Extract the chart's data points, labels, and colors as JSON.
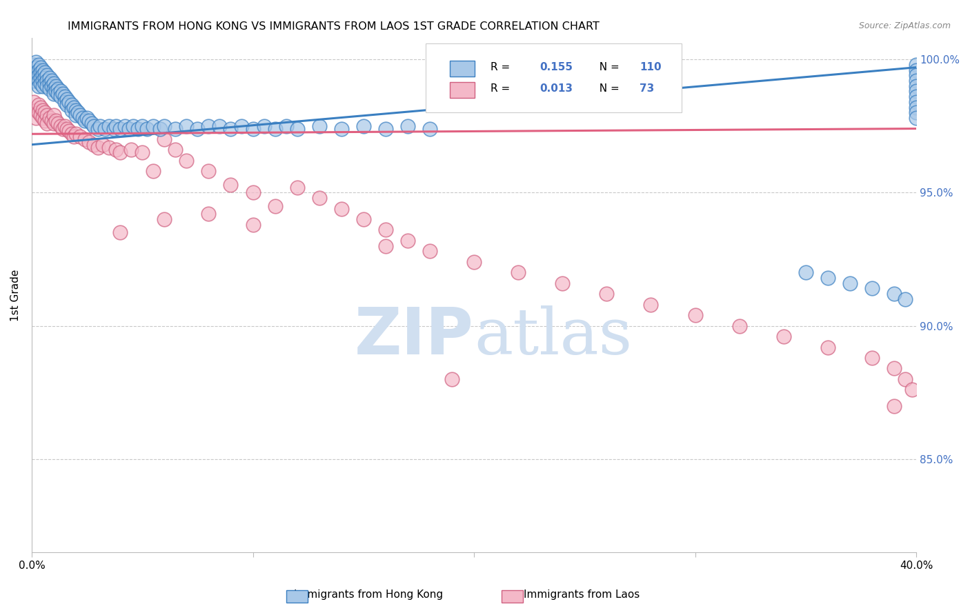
{
  "title": "IMMIGRANTS FROM HONG KONG VS IMMIGRANTS FROM LAOS 1ST GRADE CORRELATION CHART",
  "source": "Source: ZipAtlas.com",
  "ylabel": "1st Grade",
  "x_min": 0.0,
  "x_max": 0.4,
  "y_min": 0.815,
  "y_max": 1.008,
  "y_ticks": [
    0.85,
    0.9,
    0.95,
    1.0
  ],
  "y_tick_labels": [
    "85.0%",
    "90.0%",
    "95.0%",
    "100.0%"
  ],
  "x_ticks": [
    0.0,
    0.1,
    0.2,
    0.3,
    0.4
  ],
  "x_tick_labels": [
    "0.0%",
    "",
    "",
    "",
    "40.0%"
  ],
  "legend_label1": "Immigrants from Hong Kong",
  "legend_label2": "Immigrants from Laos",
  "R1": 0.155,
  "N1": 110,
  "R2": 0.013,
  "N2": 73,
  "color_hk_fill": "#a8c8e8",
  "color_hk_edge": "#3a7fc1",
  "color_laos_fill": "#f4b8c8",
  "color_laos_edge": "#d06080",
  "color_hk_line": "#3a7fc1",
  "color_laos_line": "#e06080",
  "color_right_axis": "#4472c4",
  "watermark_color": "#d0dff0",
  "hk_line_x0": 0.0,
  "hk_line_y0": 0.968,
  "hk_line_x1": 0.4,
  "hk_line_y1": 0.997,
  "laos_line_x0": 0.0,
  "laos_line_y0": 0.972,
  "laos_line_x1": 0.4,
  "laos_line_y1": 0.974,
  "hk_x": [
    0.001,
    0.001,
    0.001,
    0.002,
    0.002,
    0.002,
    0.002,
    0.003,
    0.003,
    0.003,
    0.003,
    0.003,
    0.004,
    0.004,
    0.004,
    0.004,
    0.005,
    0.005,
    0.005,
    0.005,
    0.006,
    0.006,
    0.006,
    0.007,
    0.007,
    0.007,
    0.008,
    0.008,
    0.008,
    0.009,
    0.009,
    0.01,
    0.01,
    0.01,
    0.011,
    0.011,
    0.012,
    0.012,
    0.013,
    0.013,
    0.014,
    0.015,
    0.015,
    0.016,
    0.016,
    0.017,
    0.018,
    0.018,
    0.019,
    0.02,
    0.02,
    0.021,
    0.022,
    0.023,
    0.024,
    0.025,
    0.026,
    0.027,
    0.028,
    0.03,
    0.031,
    0.033,
    0.035,
    0.037,
    0.038,
    0.04,
    0.042,
    0.044,
    0.046,
    0.048,
    0.05,
    0.052,
    0.055,
    0.058,
    0.06,
    0.065,
    0.07,
    0.075,
    0.08,
    0.085,
    0.09,
    0.095,
    0.1,
    0.105,
    0.11,
    0.115,
    0.12,
    0.13,
    0.14,
    0.15,
    0.16,
    0.17,
    0.18,
    0.35,
    0.36,
    0.37,
    0.38,
    0.39,
    0.395,
    0.4,
    0.4,
    0.4,
    0.4,
    0.4,
    0.4,
    0.4,
    0.4,
    0.4,
    0.4,
    0.4
  ],
  "hk_y": [
    0.998,
    0.995,
    0.992,
    0.999,
    0.997,
    0.995,
    0.993,
    0.998,
    0.996,
    0.994,
    0.992,
    0.99,
    0.997,
    0.995,
    0.993,
    0.991,
    0.996,
    0.994,
    0.992,
    0.99,
    0.995,
    0.993,
    0.991,
    0.994,
    0.992,
    0.99,
    0.993,
    0.991,
    0.989,
    0.992,
    0.99,
    0.991,
    0.989,
    0.987,
    0.99,
    0.988,
    0.989,
    0.987,
    0.988,
    0.986,
    0.987,
    0.986,
    0.984,
    0.985,
    0.983,
    0.984,
    0.983,
    0.981,
    0.982,
    0.981,
    0.979,
    0.98,
    0.979,
    0.978,
    0.977,
    0.978,
    0.977,
    0.976,
    0.975,
    0.974,
    0.975,
    0.974,
    0.975,
    0.974,
    0.975,
    0.974,
    0.975,
    0.974,
    0.975,
    0.974,
    0.975,
    0.974,
    0.975,
    0.974,
    0.975,
    0.974,
    0.975,
    0.974,
    0.975,
    0.975,
    0.974,
    0.975,
    0.974,
    0.975,
    0.974,
    0.975,
    0.974,
    0.975,
    0.974,
    0.975,
    0.974,
    0.975,
    0.974,
    0.92,
    0.918,
    0.916,
    0.914,
    0.912,
    0.91,
    0.998,
    0.996,
    0.994,
    0.992,
    0.99,
    0.988,
    0.986,
    0.984,
    0.982,
    0.98,
    0.978
  ],
  "laos_x": [
    0.001,
    0.002,
    0.002,
    0.003,
    0.003,
    0.004,
    0.004,
    0.005,
    0.005,
    0.006,
    0.006,
    0.007,
    0.007,
    0.008,
    0.009,
    0.01,
    0.01,
    0.011,
    0.012,
    0.013,
    0.014,
    0.015,
    0.016,
    0.017,
    0.018,
    0.019,
    0.02,
    0.022,
    0.024,
    0.026,
    0.028,
    0.03,
    0.032,
    0.035,
    0.038,
    0.04,
    0.045,
    0.05,
    0.055,
    0.06,
    0.065,
    0.07,
    0.08,
    0.09,
    0.1,
    0.11,
    0.12,
    0.13,
    0.14,
    0.15,
    0.16,
    0.17,
    0.18,
    0.2,
    0.22,
    0.24,
    0.26,
    0.28,
    0.3,
    0.32,
    0.34,
    0.36,
    0.38,
    0.39,
    0.395,
    0.398,
    0.04,
    0.06,
    0.08,
    0.1,
    0.16,
    0.19,
    0.39
  ],
  "laos_y": [
    0.984,
    0.981,
    0.978,
    0.983,
    0.98,
    0.982,
    0.979,
    0.981,
    0.978,
    0.98,
    0.977,
    0.979,
    0.976,
    0.978,
    0.977,
    0.979,
    0.976,
    0.977,
    0.976,
    0.975,
    0.974,
    0.975,
    0.974,
    0.973,
    0.972,
    0.971,
    0.972,
    0.971,
    0.97,
    0.969,
    0.968,
    0.967,
    0.968,
    0.967,
    0.966,
    0.965,
    0.966,
    0.965,
    0.958,
    0.97,
    0.966,
    0.962,
    0.958,
    0.953,
    0.95,
    0.945,
    0.952,
    0.948,
    0.944,
    0.94,
    0.936,
    0.932,
    0.928,
    0.924,
    0.92,
    0.916,
    0.912,
    0.908,
    0.904,
    0.9,
    0.896,
    0.892,
    0.888,
    0.884,
    0.88,
    0.876,
    0.935,
    0.94,
    0.942,
    0.938,
    0.93,
    0.88,
    0.87
  ]
}
